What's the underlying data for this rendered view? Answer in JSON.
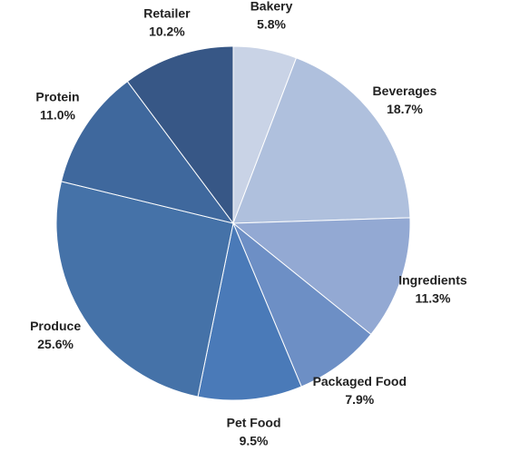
{
  "chart_data": {
    "type": "pie",
    "categories": [
      "Bakery",
      "Beverages",
      "Ingredients",
      "Packaged Food",
      "Pet Food",
      "Produce",
      "Protein",
      "Retailer"
    ],
    "values": [
      5.8,
      18.7,
      11.3,
      7.9,
      9.5,
      25.6,
      11.0,
      10.2
    ],
    "value_labels": [
      "5.8%",
      "18.7%",
      "11.3%",
      "7.9%",
      "9.5%",
      "25.6%",
      "11.0%",
      "10.2%"
    ],
    "colors": [
      "#c9d3e6",
      "#afc0dd",
      "#93a9d3",
      "#6d8fc5",
      "#4a7ab8",
      "#4572a8",
      "#3f689d",
      "#375786"
    ]
  }
}
